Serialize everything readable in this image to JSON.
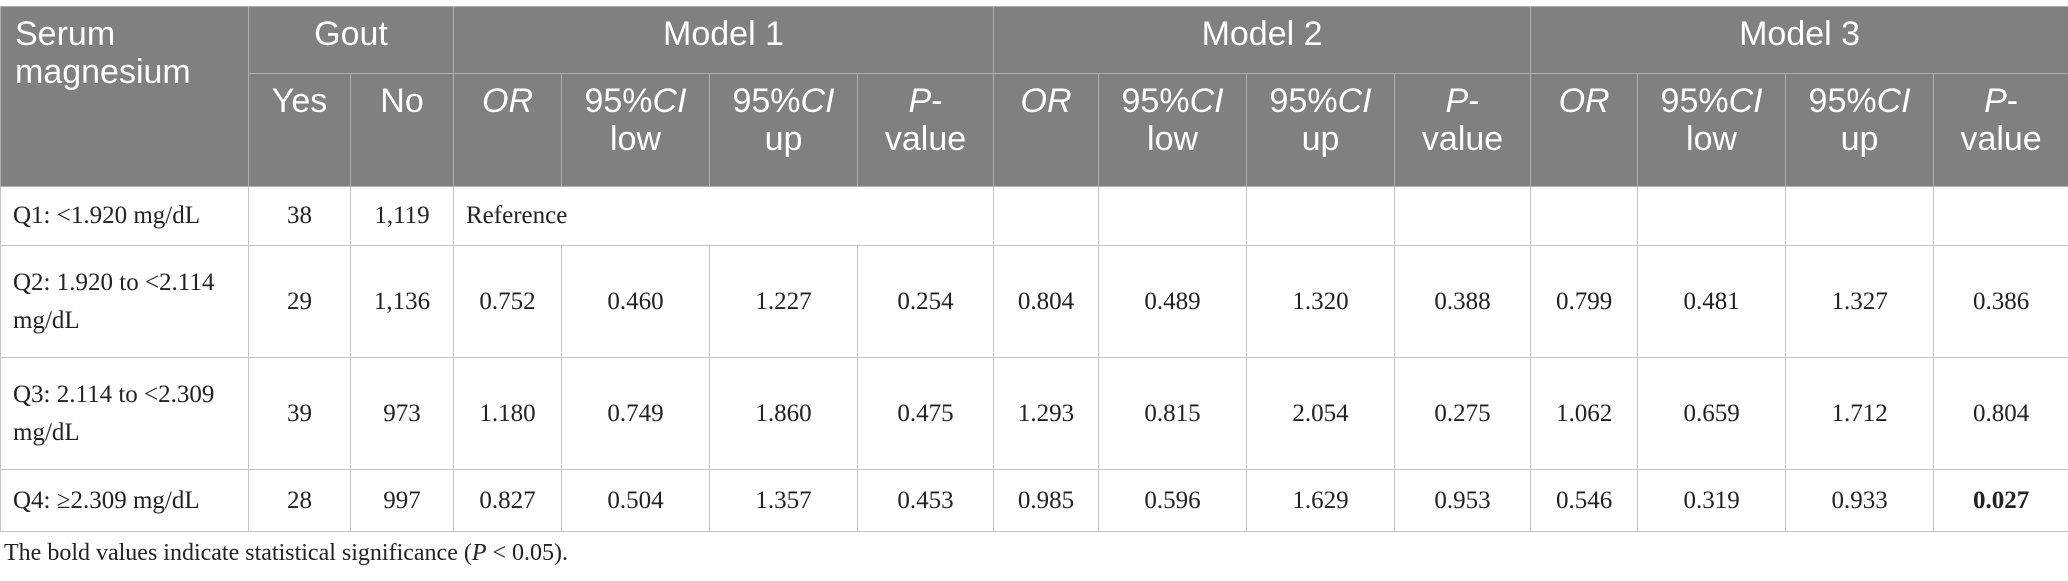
{
  "table": {
    "header_top": [
      "Serum magnesium",
      "Gout",
      "Model 1",
      "Model 2",
      "Model 3"
    ],
    "header_sub": [
      [
        {
          "text": "Yes"
        }
      ],
      [
        {
          "text": "No"
        }
      ],
      [
        {
          "text": "OR",
          "italic": true
        }
      ],
      [
        {
          "text": "95%"
        },
        {
          "text": "CI",
          "italic": true
        },
        {
          "text": "low",
          "newline": true
        }
      ],
      [
        {
          "text": "95%"
        },
        {
          "text": "CI",
          "italic": true
        },
        {
          "text": "up",
          "newline": true
        }
      ],
      [
        {
          "text": "P",
          "italic": true
        },
        {
          "text": "-"
        },
        {
          "text": "value",
          "newline": true
        }
      ],
      [
        {
          "text": "OR",
          "italic": true
        }
      ],
      [
        {
          "text": "95%"
        },
        {
          "text": "CI",
          "italic": true
        },
        {
          "text": "low",
          "newline": true
        }
      ],
      [
        {
          "text": "95%"
        },
        {
          "text": "CI",
          "italic": true
        },
        {
          "text": "up",
          "newline": true
        }
      ],
      [
        {
          "text": "P",
          "italic": true
        },
        {
          "text": "-"
        },
        {
          "text": "value",
          "newline": true
        }
      ],
      [
        {
          "text": "OR",
          "italic": true
        }
      ],
      [
        {
          "text": "95%"
        },
        {
          "text": "CI",
          "italic": true
        },
        {
          "text": "low",
          "newline": true
        }
      ],
      [
        {
          "text": "95%"
        },
        {
          "text": "CI",
          "italic": true
        },
        {
          "text": "up",
          "newline": true
        }
      ],
      [
        {
          "text": "P",
          "italic": true
        },
        {
          "text": "-"
        },
        {
          "text": "value",
          "newline": true
        }
      ]
    ],
    "rows": [
      [
        "Q1: <1.920 mg/dL",
        "38",
        "1,119",
        {
          "text": "Reference",
          "span": 4
        }
      ],
      [
        "Q2: 1.920 to <2.114 mg/dL",
        "29",
        "1,136",
        "0.752",
        "0.460",
        "1.227",
        "0.254",
        "0.804",
        "0.489",
        "1.320",
        "0.388",
        "0.799",
        "0.481",
        "1.327",
        "0.386"
      ],
      [
        "Q3: 2.114 to <2.309 mg/dL",
        "39",
        "973",
        "1.180",
        "0.749",
        "1.860",
        "0.475",
        "1.293",
        "0.815",
        "2.054",
        "0.275",
        "1.062",
        "0.659",
        "1.712",
        "0.804"
      ],
      [
        "Q4: ≥2.309 mg/dL",
        "28",
        "997",
        "0.827",
        "0.504",
        "1.357",
        "0.453",
        "0.985",
        "0.596",
        "1.629",
        "0.953",
        "0.546",
        "0.319",
        "0.933",
        {
          "text": "0.027",
          "bold": true
        }
      ]
    ]
  },
  "footnote": [
    {
      "text": "The bold values indicate statistical significance ("
    },
    {
      "text": "P",
      "italic": true
    },
    {
      "text": " < 0.05)."
    }
  ]
}
